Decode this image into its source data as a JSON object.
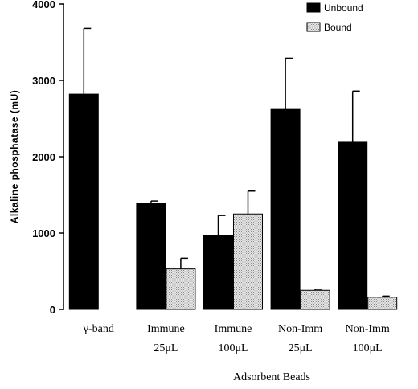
{
  "chart_data": {
    "type": "bar",
    "categories": [
      [
        "γ-band",
        ""
      ],
      [
        "Immune",
        "25μL"
      ],
      [
        "Immune",
        "100μL"
      ],
      [
        "Non-Imm",
        "25μL"
      ],
      [
        "Non-Imm",
        "100μL"
      ]
    ],
    "series": [
      {
        "name": "Unbound",
        "values": [
          2820,
          1390,
          970,
          2630,
          2190
        ],
        "errors": [
          860,
          30,
          260,
          660,
          670
        ],
        "color": "#000000"
      },
      {
        "name": "Bound",
        "values": [
          null,
          530,
          1250,
          250,
          160
        ],
        "errors": [
          null,
          140,
          300,
          15,
          15
        ],
        "color": "#cfcfcf"
      }
    ],
    "xlabel": "Adsorbent Beads",
    "ylabel": "Alkaline   phosphatase   (mU)",
    "ylim": [
      0,
      4000
    ],
    "yticks": [
      0,
      1000,
      2000,
      3000,
      4000
    ],
    "grid": false,
    "legend_position": "top-right"
  }
}
